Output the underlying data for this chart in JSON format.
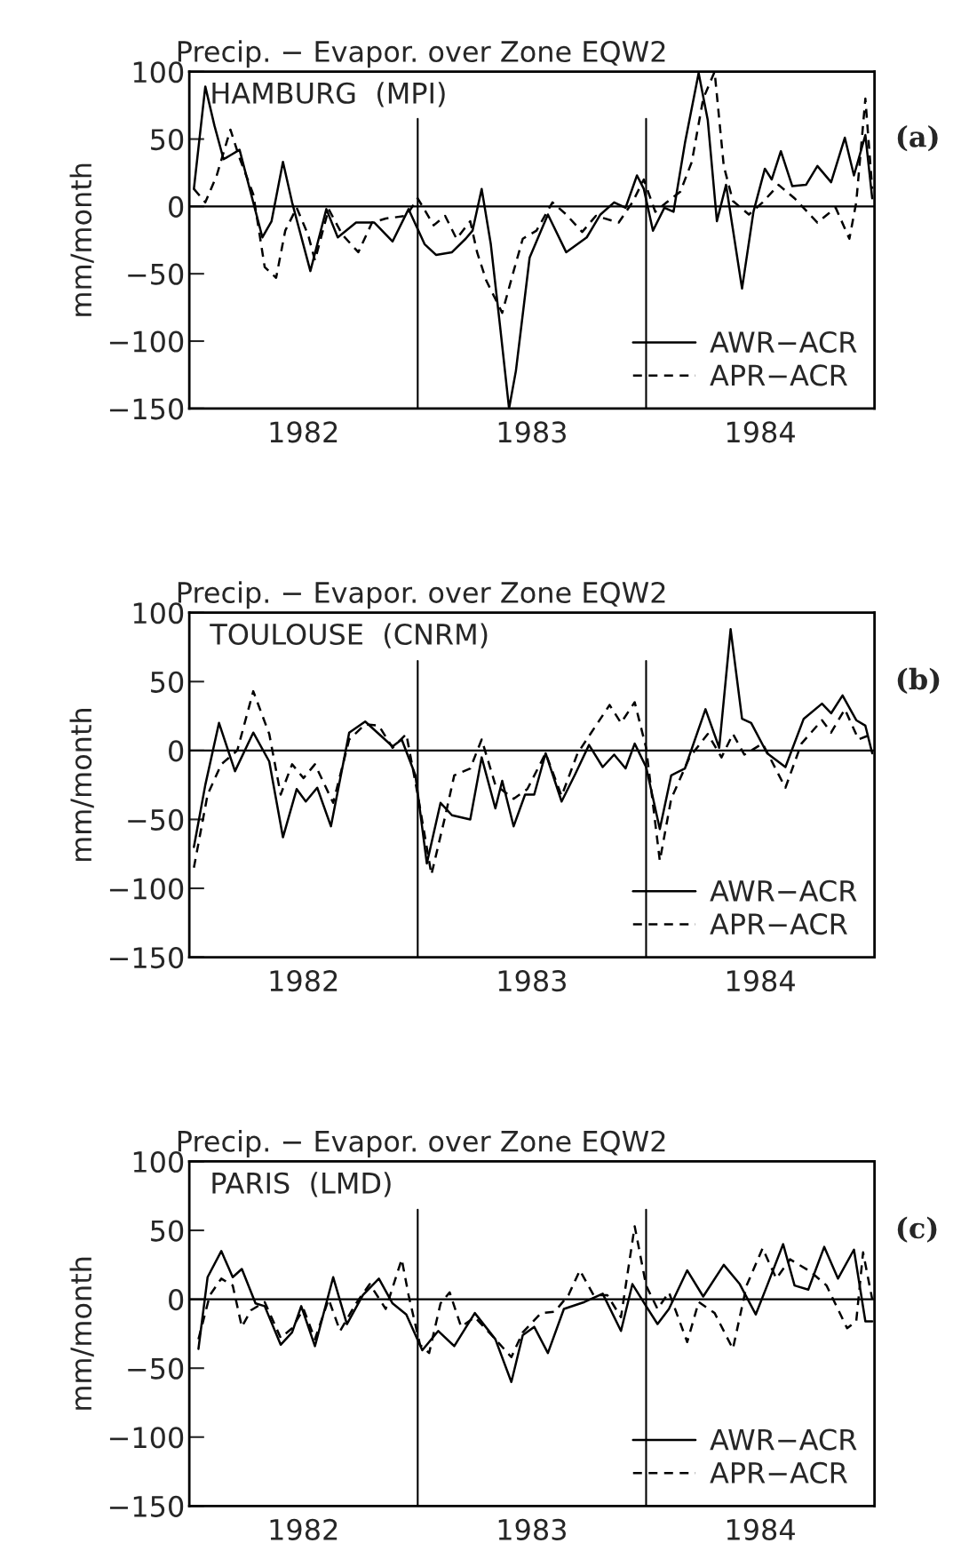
{
  "chart_data": [
    {
      "type": "line",
      "title": "Precip. − Evapor. over Zone EQW2",
      "ylabel": "mm/month",
      "annotations": [
        "HAMBURG  (MPI)",
        "(a)"
      ],
      "xlim": [
        1982,
        1985
      ],
      "xticks": [
        {
          "value": 1982.5,
          "label": "1982"
        },
        {
          "value": 1983.5,
          "label": "1983"
        },
        {
          "value": 1984.5,
          "label": "1984"
        }
      ],
      "ylim": [
        -150,
        100
      ],
      "yticks": [
        -150,
        -100,
        -50,
        0,
        50,
        100
      ],
      "grid": false,
      "legend": "bottom right",
      "marker": "none",
      "ref_lines": [
        {
          "axis": "y",
          "value": 0
        },
        {
          "axis": "x",
          "value": 1983
        },
        {
          "axis": "x",
          "value": 1984
        }
      ],
      "series": [
        {
          "name": "AWR−ACR",
          "color": "#000000",
          "line_style": "solid",
          "x": [
            1982.02,
            1982.07,
            1982.11,
            1982.15,
            1982.18,
            1982.22,
            1982.26,
            1982.32,
            1982.36,
            1982.41,
            1982.45,
            1982.53,
            1982.6,
            1982.65,
            1982.73,
            1982.81,
            1982.89,
            1982.96,
            1983.03,
            1983.08,
            1983.15,
            1983.21,
            1983.24,
            1983.28,
            1983.32,
            1983.36,
            1983.4,
            1983.43,
            1983.49,
            1983.57,
            1983.65,
            1983.74,
            1983.8,
            1983.86,
            1983.91,
            1983.96,
            1983.99,
            1984.03,
            1984.08,
            1984.12,
            1984.17,
            1984.23,
            1984.27,
            1984.31,
            1984.35,
            1984.42,
            1984.47,
            1984.52,
            1984.55,
            1984.59,
            1984.64,
            1984.7,
            1984.75,
            1984.81,
            1984.87,
            1984.91,
            1984.96,
            1984.99
          ],
          "values": [
            13,
            89,
            60,
            35,
            38,
            42,
            16,
            -23,
            -11,
            33,
            3,
            -48,
            -2,
            -23,
            -12,
            -12,
            -26,
            -2,
            -28,
            -36,
            -34,
            -24,
            -18,
            13,
            -28,
            -88,
            -150,
            -122,
            -38,
            -6,
            -34,
            -23,
            -6,
            3,
            -1,
            23,
            13,
            -18,
            -1,
            -4,
            47,
            99,
            64,
            -11,
            16,
            -61,
            -4,
            28,
            20,
            41,
            15,
            16,
            30,
            18,
            51,
            23,
            53,
            6
          ]
        },
        {
          "name": "APR−ACR",
          "color": "#000000",
          "line_style": "dashed",
          "x": [
            1982.02,
            1982.07,
            1982.12,
            1982.18,
            1982.22,
            1982.28,
            1982.33,
            1982.38,
            1982.42,
            1982.47,
            1982.52,
            1982.55,
            1982.61,
            1982.67,
            1982.74,
            1982.8,
            1982.86,
            1982.95,
            1983.0,
            1983.07,
            1983.12,
            1983.17,
            1983.23,
            1983.26,
            1983.3,
            1983.37,
            1983.42,
            1983.46,
            1983.52,
            1983.59,
            1983.65,
            1983.72,
            1983.78,
            1983.88,
            1983.94,
            1983.99,
            1984.04,
            1984.09,
            1984.15,
            1984.2,
            1984.25,
            1984.3,
            1984.34,
            1984.38,
            1984.45,
            1984.51,
            1984.58,
            1984.65,
            1984.75,
            1984.83,
            1984.89,
            1984.92,
            1984.96,
            1984.99
          ],
          "values": [
            13,
            3,
            23,
            57,
            36,
            9,
            -45,
            -53,
            -18,
            -1,
            -21,
            -40,
            -2,
            -21,
            -34,
            -12,
            -9,
            -7,
            6,
            -14,
            -7,
            -24,
            -11,
            -34,
            -55,
            -79,
            -48,
            -24,
            -18,
            3,
            -6,
            -19,
            -7,
            -12,
            3,
            20,
            -4,
            3,
            11,
            33,
            80,
            100,
            30,
            4,
            -6,
            3,
            16,
            6,
            -12,
            -1,
            -24,
            3,
            80,
            13
          ]
        }
      ]
    },
    {
      "type": "line",
      "title": "Precip. − Evapor. over Zone EQW2",
      "ylabel": "mm/month",
      "annotations": [
        "TOULOUSE  (CNRM)",
        "(b)"
      ],
      "xlim": [
        1982,
        1985
      ],
      "xticks": [
        {
          "value": 1982.5,
          "label": "1982"
        },
        {
          "value": 1983.5,
          "label": "1983"
        },
        {
          "value": 1984.5,
          "label": "1984"
        }
      ],
      "ylim": [
        -150,
        100
      ],
      "yticks": [
        -150,
        -100,
        -50,
        0,
        50,
        100
      ],
      "grid": false,
      "legend": "bottom right",
      "marker": "none",
      "ref_lines": [
        {
          "axis": "y",
          "value": 0
        },
        {
          "axis": "x",
          "value": 1983
        },
        {
          "axis": "x",
          "value": 1984
        }
      ],
      "series": [
        {
          "name": "AWR−ACR",
          "color": "#000000",
          "line_style": "solid",
          "x": [
            1982.02,
            1982.07,
            1982.13,
            1982.2,
            1982.28,
            1982.35,
            1982.41,
            1982.47,
            1982.51,
            1982.56,
            1982.62,
            1982.7,
            1982.77,
            1982.83,
            1982.89,
            1982.93,
            1982.99,
            1983.04,
            1983.1,
            1983.15,
            1983.23,
            1983.28,
            1983.34,
            1983.37,
            1983.42,
            1983.47,
            1983.51,
            1983.56,
            1983.63,
            1983.69,
            1983.75,
            1983.81,
            1983.86,
            1983.91,
            1983.95,
            1984.0,
            1984.06,
            1984.11,
            1984.17,
            1984.26,
            1984.32,
            1984.37,
            1984.42,
            1984.46,
            1984.53,
            1984.61,
            1984.69,
            1984.77,
            1984.81,
            1984.86,
            1984.92,
            1984.96,
            1984.99
          ],
          "values": [
            -70,
            -25,
            20,
            -15,
            13,
            -8,
            -63,
            -28,
            -37,
            -27,
            -55,
            13,
            21,
            12,
            3,
            8,
            -18,
            -82,
            -38,
            -47,
            -50,
            -5,
            -42,
            -22,
            -55,
            -32,
            -32,
            -2,
            -37,
            -17,
            4,
            -12,
            -3,
            -13,
            5,
            -12,
            -57,
            -18,
            -13,
            30,
            2,
            88,
            23,
            20,
            -2,
            -12,
            23,
            34,
            27,
            40,
            22,
            18,
            -2
          ]
        },
        {
          "name": "APR−ACR",
          "color": "#000000",
          "line_style": "dashed",
          "x": [
            1982.02,
            1982.08,
            1982.14,
            1982.21,
            1982.28,
            1982.35,
            1982.4,
            1982.45,
            1982.5,
            1982.55,
            1982.63,
            1982.7,
            1982.77,
            1982.83,
            1982.89,
            1982.95,
            1983.0,
            1983.06,
            1983.12,
            1983.16,
            1983.23,
            1983.28,
            1983.34,
            1983.42,
            1983.48,
            1983.56,
            1983.63,
            1983.7,
            1983.78,
            1983.84,
            1983.89,
            1983.95,
            1984.0,
            1984.06,
            1984.11,
            1984.19,
            1984.27,
            1984.33,
            1984.38,
            1984.43,
            1984.51,
            1984.61,
            1984.68,
            1984.77,
            1984.81,
            1984.87,
            1984.93,
            1984.99
          ],
          "values": [
            -85,
            -32,
            -10,
            0,
            43,
            12,
            -32,
            -10,
            -20,
            -10,
            -38,
            8,
            19,
            18,
            2,
            12,
            -32,
            -90,
            -48,
            -18,
            -13,
            8,
            -25,
            -35,
            -28,
            -2,
            -33,
            -2,
            18,
            33,
            20,
            35,
            2,
            -80,
            -35,
            -5,
            12,
            -5,
            12,
            -3,
            5,
            -27,
            5,
            22,
            13,
            30,
            8,
            12
          ]
        }
      ]
    },
    {
      "type": "line",
      "title": "Precip. − Evapor. over Zone EQW2",
      "ylabel": "mm/month",
      "annotations": [
        "PARIS  (LMD)",
        "(c)"
      ],
      "xlim": [
        1982,
        1985
      ],
      "xticks": [
        {
          "value": 1982.5,
          "label": "1982"
        },
        {
          "value": 1983.5,
          "label": "1983"
        },
        {
          "value": 1984.5,
          "label": "1984"
        }
      ],
      "ylim": [
        -150,
        100
      ],
      "yticks": [
        -150,
        -100,
        -50,
        0,
        50,
        100
      ],
      "grid": false,
      "legend": "bottom right",
      "marker": "none",
      "ref_lines": [
        {
          "axis": "y",
          "value": 0
        },
        {
          "axis": "x",
          "value": 1983
        },
        {
          "axis": "x",
          "value": 1984
        }
      ],
      "series": [
        {
          "name": "AWR−ACR",
          "color": "#000000",
          "line_style": "solid",
          "x": [
            1982.04,
            1982.08,
            1982.14,
            1982.19,
            1982.23,
            1982.29,
            1982.33,
            1982.4,
            1982.45,
            1982.49,
            1982.55,
            1982.63,
            1982.69,
            1982.76,
            1982.83,
            1982.89,
            1982.95,
            1983.02,
            1983.09,
            1983.16,
            1983.25,
            1983.34,
            1983.41,
            1983.46,
            1983.51,
            1983.57,
            1983.64,
            1983.73,
            1983.81,
            1983.89,
            1983.94,
            1984.0,
            1984.05,
            1984.1,
            1984.18,
            1984.25,
            1984.34,
            1984.41,
            1984.48,
            1984.53,
            1984.6,
            1984.65,
            1984.71,
            1984.78,
            1984.84,
            1984.91,
            1984.96,
            1984.99
          ],
          "values": [
            -36,
            16,
            35,
            16,
            22,
            -3,
            -5,
            -33,
            -24,
            -5,
            -34,
            16,
            -18,
            3,
            15,
            -3,
            -11,
            -37,
            -23,
            -34,
            -10,
            -29,
            -60,
            -26,
            -20,
            -39,
            -7,
            -2,
            4,
            -23,
            11,
            -5,
            -18,
            -7,
            21,
            2,
            25,
            11,
            -11,
            10,
            40,
            10,
            7,
            38,
            15,
            36,
            -16,
            -16
          ]
        },
        {
          "name": "APR−ACR",
          "color": "#000000",
          "line_style": "dashed",
          "x": [
            1982.04,
            1982.09,
            1982.14,
            1982.19,
            1982.23,
            1982.27,
            1982.33,
            1982.4,
            1982.45,
            1982.5,
            1982.55,
            1982.61,
            1982.66,
            1982.73,
            1982.79,
            1982.86,
            1982.93,
            1982.96,
            1983.01,
            1983.05,
            1983.1,
            1983.14,
            1983.19,
            1983.25,
            1983.34,
            1983.41,
            1983.46,
            1983.54,
            1983.6,
            1983.66,
            1983.71,
            1983.77,
            1983.83,
            1983.89,
            1983.95,
            1984.0,
            1984.05,
            1984.1,
            1984.18,
            1984.23,
            1984.3,
            1984.38,
            1984.44,
            1984.51,
            1984.57,
            1984.63,
            1984.72,
            1984.79,
            1984.88,
            1984.92,
            1984.95,
            1984.99
          ],
          "values": [
            -29,
            3,
            15,
            10,
            -20,
            -8,
            -2,
            -28,
            -21,
            -7,
            -29,
            0,
            -23,
            -3,
            11,
            -7,
            29,
            3,
            -33,
            -39,
            -3,
            5,
            -20,
            -13,
            -29,
            -42,
            -24,
            -10,
            -9,
            3,
            21,
            3,
            3,
            -13,
            53,
            10,
            -7,
            5,
            -31,
            -2,
            -10,
            -36,
            10,
            37,
            15,
            29,
            20,
            10,
            -21,
            -16,
            34,
            0
          ]
        }
      ]
    }
  ]
}
